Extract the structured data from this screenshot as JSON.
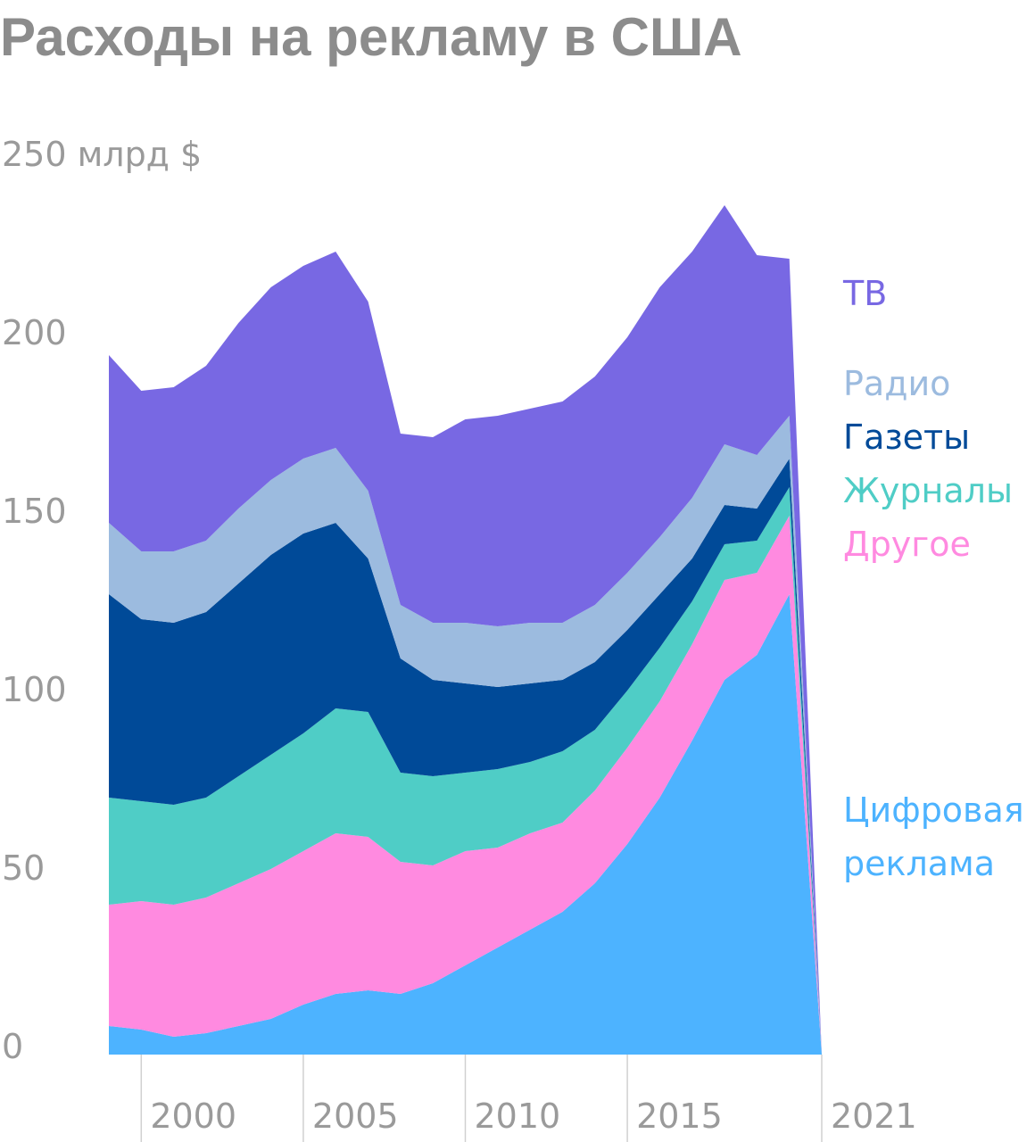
{
  "chart_data": {
    "type": "area",
    "stacked": true,
    "title": "Расходы на рекламу в США",
    "y_unit_label": "250 млрд $",
    "ylim": [
      0,
      250
    ],
    "y_ticks": [
      "0",
      "50",
      "100",
      "150",
      "200"
    ],
    "x_tick_labels": [
      "2000",
      "2005",
      "2010",
      "2015",
      "2021"
    ],
    "x_tick_years": [
      2000,
      2005,
      2010,
      2015,
      2021
    ],
    "x": [
      1999,
      2000,
      2001,
      2002,
      2003,
      2004,
      2005,
      2006,
      2007,
      2008,
      2009,
      2010,
      2011,
      2012,
      2013,
      2014,
      2015,
      2016,
      2017,
      2018,
      2019,
      2020,
      2021
    ],
    "series": [
      {
        "name": "Цифровая реклама",
        "color": "#4db3ff",
        "values": [
          8,
          7,
          5,
          6,
          8,
          10,
          14,
          17,
          18,
          17,
          20,
          25,
          30,
          35,
          40,
          48,
          59,
          72,
          88,
          105,
          112,
          129,
          0
        ]
      },
      {
        "name": "Другое",
        "color": "#ff8ae0",
        "values": [
          34,
          36,
          37,
          38,
          40,
          42,
          43,
          45,
          43,
          37,
          33,
          32,
          28,
          27,
          25,
          26,
          27,
          27,
          27,
          28,
          23,
          22,
          0
        ]
      },
      {
        "name": "Журналы",
        "color": "#4fcdc6",
        "values": [
          30,
          28,
          28,
          28,
          30,
          32,
          33,
          35,
          35,
          25,
          25,
          22,
          22,
          20,
          20,
          17,
          16,
          15,
          12,
          10,
          9,
          8,
          0
        ]
      },
      {
        "name": "Газеты",
        "color": "#004a98",
        "values": [
          57,
          51,
          51,
          52,
          54,
          56,
          56,
          52,
          43,
          32,
          27,
          25,
          23,
          22,
          20,
          19,
          17,
          15,
          12,
          11,
          9,
          8,
          0
        ]
      },
      {
        "name": "Радио",
        "color": "#9cbbdf",
        "values": [
          20,
          19,
          20,
          20,
          21,
          21,
          21,
          21,
          19,
          15,
          16,
          17,
          17,
          17,
          16,
          16,
          16,
          16,
          17,
          17,
          15,
          12,
          0
        ]
      },
      {
        "name": "ТВ",
        "color": "#7868e3",
        "values": [
          47,
          45,
          46,
          49,
          52,
          54,
          54,
          55,
          53,
          48,
          52,
          57,
          59,
          60,
          62,
          64,
          66,
          70,
          69,
          67,
          56,
          44,
          0
        ]
      }
    ],
    "legend": [
      {
        "text": "ТВ",
        "color": "#7868e3"
      },
      {
        "text": "Радио",
        "color": "#9cbbdf"
      },
      {
        "text": "Газеты",
        "color": "#004a98"
      },
      {
        "text": "Журналы",
        "color": "#4fcdc6"
      },
      {
        "text": "Другое",
        "color": "#ff8ae0"
      },
      {
        "text": "Цифровая",
        "color": "#4db3ff"
      },
      {
        "text": "реклама",
        "color": "#4db3ff"
      }
    ]
  }
}
